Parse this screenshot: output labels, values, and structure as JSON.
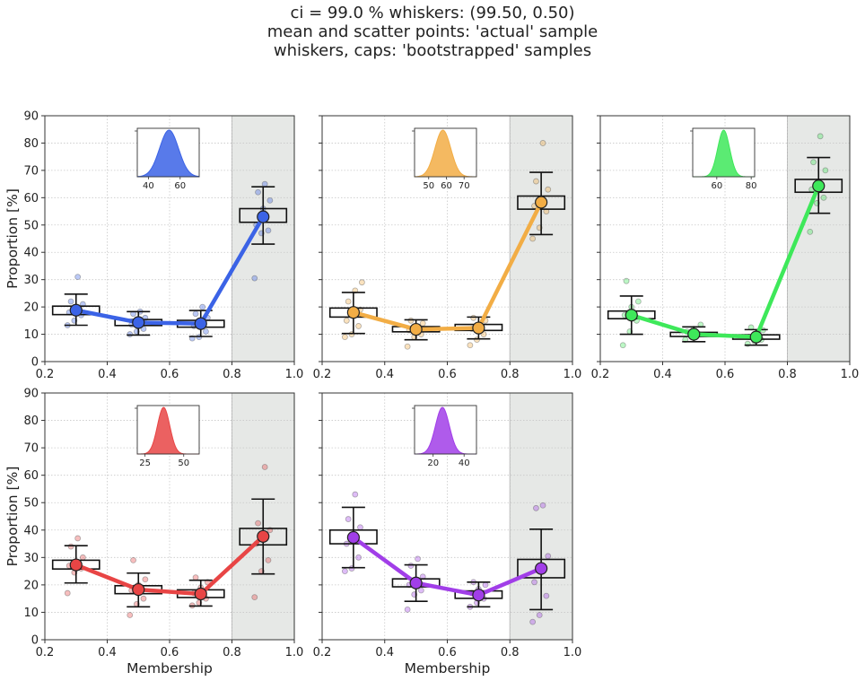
{
  "title_lines": [
    "ci = 99.0 % whiskers: (99.50, 0.50)",
    "mean and scatter points: 'actual' sample",
    "whiskers, caps: 'bootstrapped' samples"
  ],
  "chart_data": [
    {
      "type": "line",
      "name": "panel-blue",
      "color": "#3b63e6",
      "xlim": [
        0.2,
        1.0
      ],
      "ylim": [
        0,
        90
      ],
      "xticks": [
        "0.2",
        "0.4",
        "0.6",
        "0.8",
        "1.0"
      ],
      "yticks": [
        "0",
        "10",
        "20",
        "30",
        "40",
        "50",
        "60",
        "70",
        "80",
        "90"
      ],
      "ylabel": "Proportion [%]",
      "xlabel": "",
      "shaded_region": [
        0.8,
        1.0
      ],
      "grid": true,
      "x": [
        0.3,
        0.5,
        0.7,
        0.9
      ],
      "mean": [
        18.8,
        14.3,
        13.9,
        53.0
      ],
      "box_q1": [
        17.2,
        13.2,
        12.6,
        51.0
      ],
      "box_q3": [
        20.3,
        15.4,
        15.1,
        56.0
      ],
      "whisker_low": [
        13.3,
        9.7,
        9.2,
        43.0
      ],
      "whisker_high": [
        24.7,
        18.3,
        18.7,
        64.0
      ],
      "scatter": [
        [
          13.3,
          15,
          17,
          18,
          19,
          21,
          22,
          31
        ],
        [
          10,
          11,
          12,
          13.5,
          15,
          16,
          17.5,
          18.3
        ],
        [
          8.5,
          9,
          11,
          13,
          14,
          16,
          17.5,
          20
        ],
        [
          30.5,
          47,
          48,
          50,
          56,
          59,
          62,
          65
        ]
      ],
      "inset": {
        "mean": 53,
        "sd": 6,
        "xlim": [
          33,
          72
        ],
        "xticks": [
          "40",
          "60"
        ]
      }
    },
    {
      "type": "line",
      "name": "panel-orange",
      "color": "#f2ad45",
      "xlim": [
        0.2,
        1.0
      ],
      "ylim": [
        0,
        90
      ],
      "xticks": [
        "0.2",
        "0.4",
        "0.6",
        "0.8",
        "1.0"
      ],
      "yticks": [],
      "ylabel": "",
      "xlabel": "",
      "shaded_region": [
        0.8,
        1.0
      ],
      "grid": true,
      "x": [
        0.3,
        0.5,
        0.7,
        0.9
      ],
      "mean": [
        18.0,
        11.8,
        12.3,
        58.3
      ],
      "box_q1": [
        16.3,
        10.9,
        11.4,
        55.8
      ],
      "box_q3": [
        19.6,
        12.8,
        13.6,
        60.6
      ],
      "whisker_low": [
        10.3,
        8.0,
        8.3,
        46.5
      ],
      "whisker_high": [
        25.3,
        15.3,
        16.3,
        69.3
      ],
      "scatter": [
        [
          9,
          10,
          13,
          15,
          17,
          19,
          22,
          26,
          29
        ],
        [
          5.5,
          9,
          10,
          11.5,
          12.5,
          14,
          15
        ],
        [
          6,
          8,
          10,
          12,
          13,
          15,
          16
        ],
        [
          45,
          49,
          55,
          57,
          59,
          63,
          66,
          80
        ]
      ],
      "inset": {
        "mean": 58,
        "sd": 4.5,
        "xlim": [
          42,
          77
        ],
        "xticks": [
          "50",
          "60",
          "70"
        ]
      }
    },
    {
      "type": "line",
      "name": "panel-green",
      "color": "#3ee85a",
      "xlim": [
        0.2,
        1.0
      ],
      "ylim": [
        0,
        90
      ],
      "xticks": [
        "0.2",
        "0.4",
        "0.6",
        "0.8",
        "1.0"
      ],
      "yticks": [],
      "ylabel": "",
      "xlabel": "",
      "shaded_region": [
        0.8,
        1.0
      ],
      "grid": true,
      "x": [
        0.3,
        0.5,
        0.7,
        0.9
      ],
      "mean": [
        17.0,
        10.0,
        9.0,
        64.3
      ],
      "box_q1": [
        15.7,
        9.2,
        8.2,
        62.0
      ],
      "box_q3": [
        18.5,
        10.7,
        9.8,
        66.7
      ],
      "whisker_low": [
        10.0,
        7.3,
        6.0,
        54.3
      ],
      "whisker_high": [
        24.0,
        12.7,
        11.7,
        74.7
      ],
      "scatter": [
        [
          6,
          11,
          15,
          17,
          20,
          22,
          29.5
        ],
        [
          8,
          9,
          10,
          11,
          12,
          13.5
        ],
        [
          6.5,
          7.5,
          8,
          9,
          10,
          11.5,
          12.5
        ],
        [
          47.5,
          58,
          60,
          63,
          65,
          70,
          73,
          82.5
        ]
      ],
      "inset": {
        "mean": 64,
        "sd": 3.5,
        "xlim": [
          46,
          82
        ],
        "xticks": [
          "60",
          "80"
        ]
      }
    },
    {
      "type": "line",
      "name": "panel-red",
      "color": "#e84545",
      "xlim": [
        0.2,
        1.0
      ],
      "ylim": [
        0,
        90
      ],
      "xticks": [
        "0.2",
        "0.4",
        "0.6",
        "0.8",
        "1.0"
      ],
      "yticks": [
        "0",
        "10",
        "20",
        "30",
        "40",
        "50",
        "60",
        "70",
        "80",
        "90"
      ],
      "ylabel": "Proportion [%]",
      "xlabel": "Membership",
      "shaded_region": [
        0.8,
        1.0
      ],
      "grid": true,
      "x": [
        0.3,
        0.5,
        0.7,
        0.9
      ],
      "mean": [
        27.3,
        18.3,
        16.7,
        37.7
      ],
      "box_q1": [
        25.8,
        16.8,
        15.4,
        34.6
      ],
      "box_q3": [
        29.0,
        19.7,
        18.2,
        40.6
      ],
      "whisker_low": [
        20.7,
        12.0,
        12.3,
        24.0
      ],
      "whisker_high": [
        34.3,
        24.3,
        21.7,
        51.3
      ],
      "scatter": [
        [
          17,
          24.5,
          26,
          27,
          28,
          30,
          34,
          37
        ],
        [
          9,
          13,
          15,
          18,
          20,
          22,
          29
        ],
        [
          12.5,
          13.5,
          15,
          17,
          19,
          21,
          22.7
        ],
        [
          15.5,
          25,
          29,
          35,
          38,
          40,
          42.5,
          63
        ]
      ],
      "inset": {
        "mean": 37,
        "sd": 4,
        "xlim": [
          20,
          60
        ],
        "xticks": [
          "25",
          "50"
        ]
      }
    },
    {
      "type": "line",
      "name": "panel-purple",
      "color": "#a13ee8",
      "xlim": [
        0.2,
        1.0
      ],
      "ylim": [
        0,
        90
      ],
      "xticks": [
        "0.2",
        "0.4",
        "0.6",
        "0.8",
        "1.0"
      ],
      "yticks": [],
      "ylabel": "",
      "xlabel": "Membership",
      "shaded_region": [
        0.8,
        1.0
      ],
      "grid": true,
      "x": [
        0.3,
        0.5,
        0.7,
        0.9
      ],
      "mean": [
        37.3,
        20.7,
        16.3,
        26.0
      ],
      "box_q1": [
        35.0,
        19.3,
        15.1,
        22.6
      ],
      "box_q3": [
        40.0,
        22.2,
        17.8,
        29.3
      ],
      "whisker_low": [
        26.3,
        14.0,
        12.0,
        11.0
      ],
      "whisker_high": [
        48.3,
        27.3,
        21.0,
        40.3
      ],
      "scatter": [
        [
          25,
          26,
          30,
          35,
          38,
          41,
          44,
          53
        ],
        [
          11,
          16.5,
          18,
          20,
          21,
          23,
          27,
          29.5
        ],
        [
          12,
          13.5,
          15,
          17,
          18.5,
          20,
          21
        ],
        [
          6.5,
          9,
          16,
          21,
          26,
          30.5,
          48,
          49
        ]
      ],
      "inset": {
        "mean": 26,
        "sd": 4.5,
        "xlim": [
          8,
          48
        ],
        "xticks": [
          "20",
          "40"
        ]
      }
    }
  ]
}
